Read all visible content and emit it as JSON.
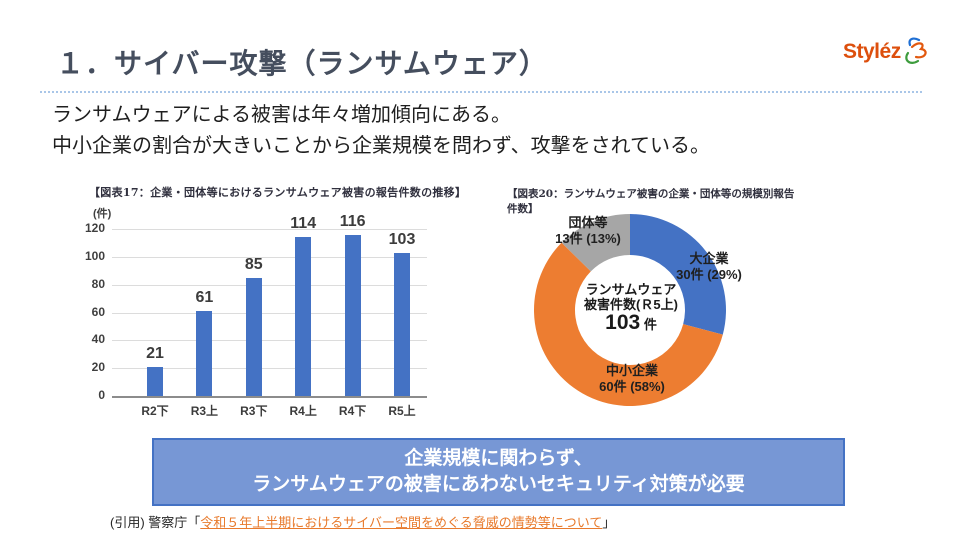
{
  "slide": {
    "title": "１．サイバー攻撃（ランサムウェア）",
    "logo": {
      "text": "Styléz",
      "mark": "swirl-3"
    },
    "lead_lines": [
      "ランサムウェアによる被害は年々増加傾向にある。",
      "中小企業の割合が大きいことから企業規模を問わず、攻撃をされている。"
    ]
  },
  "chart_data": [
    {
      "type": "bar",
      "title": "【図表17：企業・団体等におけるランサムウェア被害の報告件数の推移】",
      "unit_label": "(件)",
      "categories": [
        "R2下",
        "R3上",
        "R3下",
        "R4上",
        "R4下",
        "R5上"
      ],
      "values": [
        21,
        61,
        85,
        114,
        116,
        103
      ],
      "ylim": [
        0,
        120
      ],
      "ytick_step": 20,
      "grid": true,
      "bar_color": "#4472c4",
      "value_labels": true
    },
    {
      "type": "pie",
      "donut": true,
      "title": "【図表20：ランサムウェア被害の企業・団体等の規模別報告件数】",
      "start": "top",
      "direction": "clockwise",
      "slices": [
        {
          "label": "大企業",
          "detail": "30件 (29%)",
          "value": 30,
          "pct": 29,
          "color": "#4472c4"
        },
        {
          "label": "中小企業",
          "detail": "60件 (58%)",
          "value": 60,
          "pct": 58,
          "color": "#ed7d31"
        },
        {
          "label": "団体等",
          "detail": "13件 (13%)",
          "value": 13,
          "pct": 13,
          "color": "#a6a6a6"
        }
      ],
      "center_lines": [
        "ランサムウェア",
        "被害件数(Ｒ5上)"
      ],
      "center_value": "103",
      "center_unit": "件"
    }
  ],
  "banner": {
    "lines": [
      "企業規模に関わらず、",
      "ランサムウェアの被害にあわないセキュリティ対策が必要"
    ],
    "bg_color": "#7797d5",
    "border_color": "#4472c4",
    "text_color": "#ffffff"
  },
  "citation": {
    "prefix": "(引用) 警察庁「",
    "link_text": "令和５年上半期におけるサイバー空間をめぐる脅威の情勢等について",
    "suffix": "」",
    "link_color": "#e87a2c"
  }
}
